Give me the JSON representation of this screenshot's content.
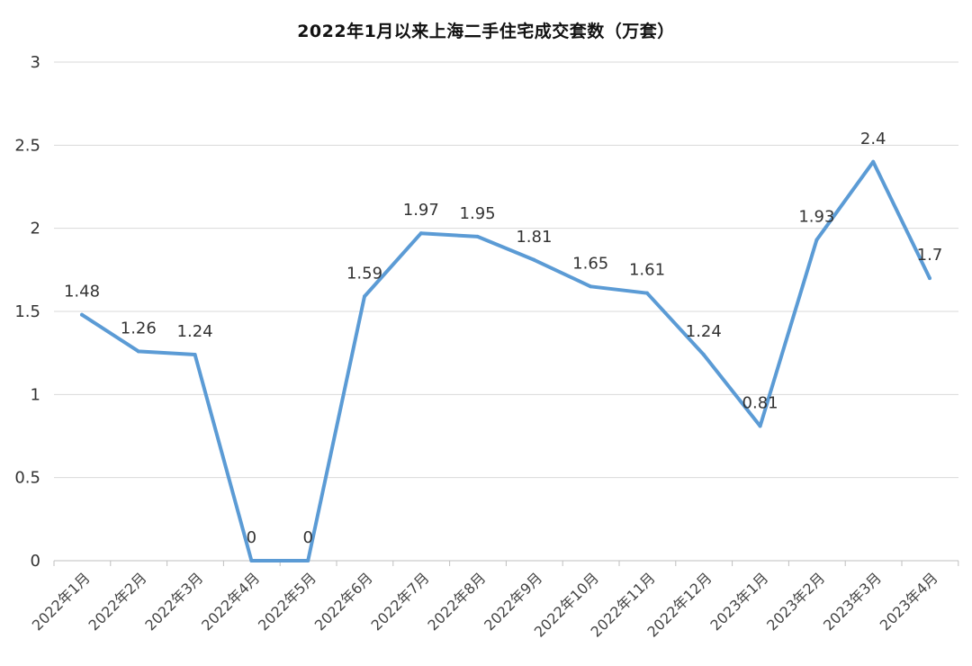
{
  "chart_data": {
    "type": "line",
    "title": "2022年1月以来上海二手住宅成交套数（万套）",
    "categories": [
      "2022年1月",
      "2022年2月",
      "2022年3月",
      "2022年4月",
      "2022年5月",
      "2022年6月",
      "2022年7月",
      "2022年8月",
      "2022年9月",
      "2022年10月",
      "2022年11月",
      "2022年12月",
      "2023年1月",
      "2023年2月",
      "2023年3月",
      "2023年4月"
    ],
    "series": [
      {
        "values": [
          1.48,
          1.26,
          1.24,
          0,
          0,
          1.59,
          1.97,
          1.95,
          1.81,
          1.65,
          1.61,
          1.24,
          0.81,
          1.93,
          2.4,
          1.7
        ]
      }
    ],
    "data_labels": [
      "1.48",
      "1.26",
      "1.24",
      "0",
      "0",
      "1.59",
      "1.97",
      "1.95",
      "1.81",
      "1.65",
      "1.61",
      "1.24",
      "0.81",
      "1.93",
      "2.4",
      "1.7"
    ],
    "yticks": [
      "0",
      "0.5",
      "1",
      "1.5",
      "2",
      "2.5",
      "3"
    ],
    "ylim": [
      0,
      3
    ],
    "grid": true,
    "legend": "none",
    "xlabel": "",
    "ylabel": "",
    "colors": {
      "line": "#5b9bd5",
      "grid": "#d9d9d9",
      "text": "#333333"
    }
  }
}
